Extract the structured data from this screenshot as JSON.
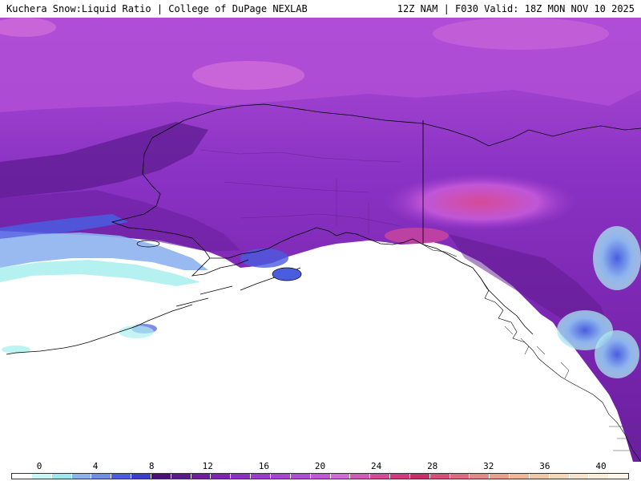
{
  "header": {
    "left_title": "Kuchera Snow:Liquid Ratio | College of DuPage NEXLAB",
    "right_title": "12Z NAM | F030 Valid: 18Z MON NOV 10 2025"
  },
  "map": {
    "region": "Alaska and Gulf of Alaska",
    "colors": {
      "ocean_no_snow": "#ffffff",
      "deep_purple": "#5b1a8c",
      "mid_purple": "#8a32c4",
      "light_purple": "#b04dd6",
      "magenta": "#d56ad8",
      "pink": "#e26aa8",
      "blue": "#4a5de0",
      "light_blue": "#8db3ee",
      "cyan": "#aef0f0",
      "coastline": "#000000"
    }
  },
  "colorbar": {
    "tick_labels": [
      "0",
      "4",
      "8",
      "12",
      "16",
      "20",
      "24",
      "28",
      "32",
      "36",
      "40"
    ],
    "segment_colors": [
      "#ffffff",
      "#c9f6f6",
      "#a3e6ee",
      "#8db3ee",
      "#6f8fe6",
      "#4a5de0",
      "#3a3fd0",
      "#4a1078",
      "#5b1a8c",
      "#6a1f9e",
      "#7a26b0",
      "#8a32c4",
      "#9a3ccc",
      "#a844d2",
      "#b04dd6",
      "#c056d8",
      "#d06bd8",
      "#d05cb8",
      "#d64a98",
      "#d43a80",
      "#c8306c",
      "#d8507a",
      "#e06a80",
      "#e48a86",
      "#e8a28c",
      "#ecb898",
      "#f0c8a8",
      "#f4d8b8",
      "#f8e4c8",
      "#fbeed8",
      "#fef6e8"
    ]
  }
}
